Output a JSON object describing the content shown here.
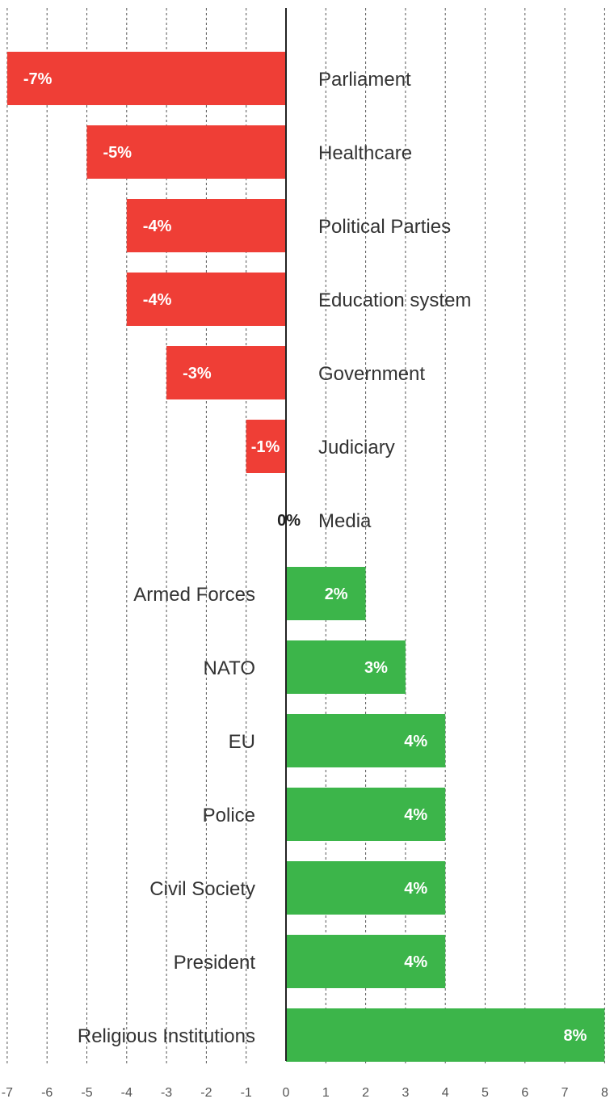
{
  "chart_data": {
    "type": "bar",
    "orientation": "horizontal",
    "categories": [
      "Parliament",
      "Healthcare",
      "Political Parties",
      "Education system",
      "Government",
      "Judiciary",
      "Media",
      "Armed Forces",
      "NATO",
      "EU",
      "Police",
      "Civil Society",
      "President",
      "Religious Institutions"
    ],
    "values": [
      -7,
      -5,
      -4,
      -4,
      -3,
      -1,
      0,
      2,
      3,
      4,
      4,
      4,
      4,
      8
    ],
    "value_labels": [
      "-7%",
      "-5%",
      "-4%",
      "-4%",
      "-3%",
      "-1%",
      "0%",
      "2%",
      "3%",
      "4%",
      "4%",
      "4%",
      "4%",
      "8%"
    ],
    "xlim": [
      -7,
      8
    ],
    "x_ticks": [
      "-7",
      "-6",
      "-5",
      "-4",
      "-3",
      "-2",
      "-1",
      "0",
      "1",
      "2",
      "3",
      "4",
      "5",
      "6",
      "7",
      "8"
    ],
    "grid": true,
    "colors": {
      "negative": "#ef3e36",
      "positive": "#3cb54a",
      "zero_label": "#222222"
    },
    "title": "",
    "xlabel": "",
    "ylabel": ""
  }
}
